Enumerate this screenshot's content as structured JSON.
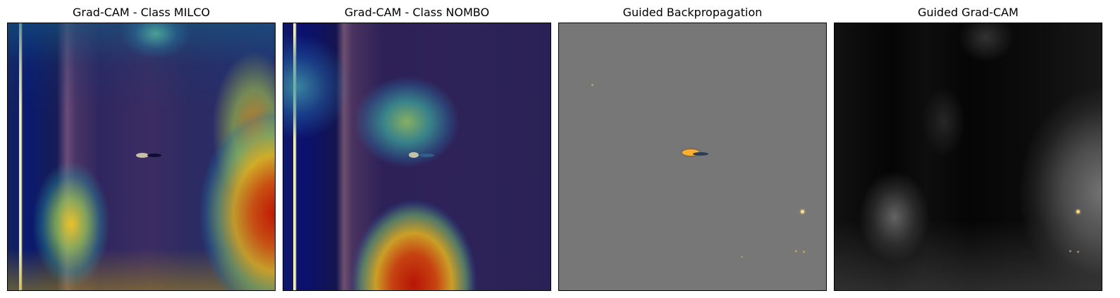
{
  "figure": {
    "panels": [
      {
        "title": "Grad-CAM - Class MILCO",
        "icon": "heatmap-overlay"
      },
      {
        "title": "Grad-CAM - Class NOMBO",
        "icon": "heatmap-overlay"
      },
      {
        "title": "Guided Backpropagation",
        "icon": "gradient-map"
      },
      {
        "title": "Guided Grad-CAM",
        "icon": "grayscale-map"
      }
    ],
    "colors": {
      "background": "#ffffff",
      "sonar_base": "#1d1545",
      "heat_hot": "#b51e0a",
      "heat_mid": "#d9b820",
      "heat_cool": "#2aa9a0",
      "guided_gray": "#777777",
      "gradcam_black": "#050505"
    }
  }
}
